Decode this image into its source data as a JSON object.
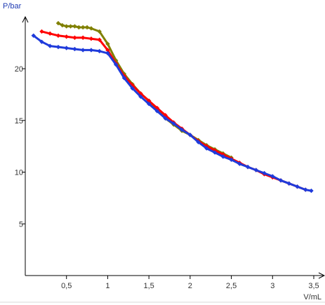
{
  "chart_data": {
    "type": "line",
    "title": "",
    "xlabel": "V/mL",
    "ylabel": "P/bar",
    "xlim": [
      -0.0,
      3.5
    ],
    "ylim": [
      0,
      24
    ],
    "x_ticks": [
      0.5,
      1,
      1.5,
      2,
      2.5,
      3,
      3.5
    ],
    "x_tick_labels": [
      "0,5",
      "1",
      "1,5",
      "2",
      "2,5",
      "3",
      "3,5"
    ],
    "y_ticks": [
      5,
      10,
      15,
      20
    ],
    "y_tick_labels": [
      "5",
      "10",
      "15",
      "20"
    ],
    "grid": false,
    "colors": {
      "axis": "#000000",
      "axis_label": "#1f3bb3",
      "series": [
        "#808000",
        "#ff0000",
        "#1f3bdb"
      ]
    },
    "series": [
      {
        "color": "#808000",
        "points": [
          [
            0.4,
            24.4
          ],
          [
            0.45,
            24.2
          ],
          [
            0.5,
            24.1
          ],
          [
            0.55,
            24.1
          ],
          [
            0.6,
            24.1
          ],
          [
            0.65,
            24.0
          ],
          [
            0.7,
            24.0
          ],
          [
            0.75,
            24.0
          ],
          [
            0.8,
            23.9
          ],
          [
            0.9,
            23.6
          ],
          [
            1.0,
            22.4
          ],
          [
            1.1,
            20.8
          ],
          [
            1.2,
            19.5
          ],
          [
            1.3,
            18.5
          ],
          [
            1.4,
            17.6
          ],
          [
            1.5,
            16.9
          ],
          [
            1.6,
            16.0
          ],
          [
            1.7,
            15.2
          ],
          [
            1.8,
            14.6
          ],
          [
            1.9,
            14.0
          ],
          [
            2.0,
            13.6
          ],
          [
            2.1,
            13.1
          ],
          [
            2.2,
            12.6
          ],
          [
            2.3,
            12.2
          ],
          [
            2.4,
            11.8
          ],
          [
            2.5,
            11.4
          ]
        ]
      },
      {
        "color": "#ff0000",
        "points": [
          [
            0.2,
            23.6
          ],
          [
            0.3,
            23.4
          ],
          [
            0.4,
            23.2
          ],
          [
            0.5,
            23.1
          ],
          [
            0.6,
            23.0
          ],
          [
            0.7,
            23.0
          ],
          [
            0.8,
            22.9
          ],
          [
            0.9,
            22.8
          ],
          [
            1.0,
            21.8
          ],
          [
            1.1,
            20.5
          ],
          [
            1.2,
            19.3
          ],
          [
            1.3,
            18.4
          ],
          [
            1.4,
            17.6
          ],
          [
            1.5,
            16.9
          ],
          [
            1.6,
            16.2
          ],
          [
            1.7,
            15.5
          ],
          [
            1.8,
            14.8
          ],
          [
            1.9,
            14.2
          ],
          [
            2.0,
            13.6
          ],
          [
            2.1,
            13.0
          ],
          [
            2.2,
            12.5
          ],
          [
            2.3,
            12.1
          ],
          [
            2.4,
            11.7
          ],
          [
            2.5,
            11.3
          ],
          [
            2.6,
            10.9
          ],
          [
            2.7,
            10.5
          ],
          [
            2.8,
            10.2
          ],
          [
            2.9,
            9.8
          ],
          [
            3.0,
            9.5
          ],
          [
            3.1,
            9.2
          ],
          [
            3.2,
            8.9
          ],
          [
            3.3,
            8.6
          ],
          [
            3.4,
            8.3
          ]
        ]
      },
      {
        "color": "#1f3bdb",
        "points": [
          [
            0.1,
            23.2
          ],
          [
            0.2,
            22.6
          ],
          [
            0.3,
            22.2
          ],
          [
            0.4,
            22.1
          ],
          [
            0.5,
            22.0
          ],
          [
            0.6,
            21.9
          ],
          [
            0.7,
            21.8
          ],
          [
            0.8,
            21.8
          ],
          [
            0.9,
            21.7
          ],
          [
            1.0,
            21.5
          ],
          [
            1.1,
            20.4
          ],
          [
            1.2,
            19.1
          ],
          [
            1.3,
            18.1
          ],
          [
            1.4,
            17.3
          ],
          [
            1.5,
            16.6
          ],
          [
            1.6,
            15.9
          ],
          [
            1.7,
            15.2
          ],
          [
            1.8,
            14.7
          ],
          [
            1.9,
            14.1
          ],
          [
            2.0,
            13.6
          ],
          [
            2.1,
            12.9
          ],
          [
            2.2,
            12.3
          ],
          [
            2.3,
            11.9
          ],
          [
            2.4,
            11.5
          ],
          [
            2.5,
            11.2
          ],
          [
            2.6,
            10.8
          ],
          [
            2.7,
            10.5
          ],
          [
            2.8,
            10.2
          ],
          [
            2.9,
            9.9
          ],
          [
            3.0,
            9.6
          ],
          [
            3.1,
            9.2
          ],
          [
            3.2,
            8.9
          ],
          [
            3.3,
            8.6
          ],
          [
            3.4,
            8.3
          ],
          [
            3.47,
            8.2
          ]
        ]
      }
    ]
  }
}
